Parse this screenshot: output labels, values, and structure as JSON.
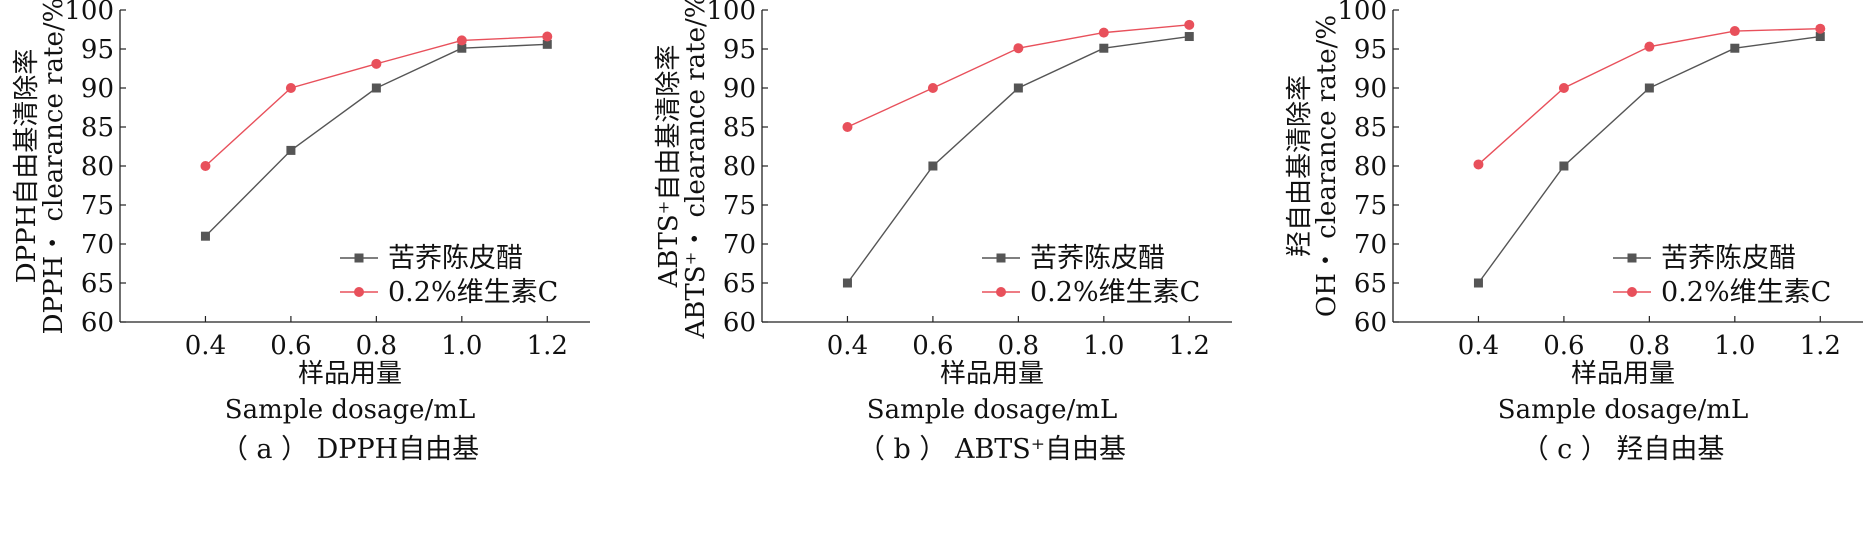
{
  "colors": {
    "series_1": "#555555",
    "series_2": "#e8505b",
    "axis": "#222222"
  },
  "legend": [
    "苦荞陈皮醋",
    "0.2%维生素C"
  ],
  "chart_data": [
    {
      "type": "line",
      "caption": "（ a ） DPPH自由基",
      "ylabel_cn": "DPPH自由基清除率",
      "ylabel_en": "DPPH・ clearance rate/%",
      "xlabel_cn": "样品用量",
      "xlabel_en": "Sample dosage/mL",
      "x": [
        0.4,
        0.6,
        0.8,
        1.0,
        1.2
      ],
      "xticks": [
        "0.4",
        "0.6",
        "0.8",
        "1.0",
        "1.2"
      ],
      "xlim": [
        0.2,
        1.3
      ],
      "ylim": [
        60,
        100
      ],
      "yticks": [
        "60",
        "65",
        "70",
        "75",
        "80",
        "85",
        "90",
        "95",
        "100"
      ],
      "series": [
        {
          "name": "苦荞陈皮醋",
          "marker": "square",
          "values": [
            71,
            82,
            90,
            95.1,
            95.6
          ]
        },
        {
          "name": "0.2%维生素C",
          "marker": "circle",
          "values": [
            80,
            90,
            93.1,
            96.1,
            96.6
          ]
        }
      ]
    },
    {
      "type": "line",
      "caption": "（ b ） ABTS⁺自由基",
      "ylabel_cn": "ABTS⁺自由基清除率",
      "ylabel_en": "ABTS⁺・ clearance rate/%",
      "xlabel_cn": "样品用量",
      "xlabel_en": "Sample dosage/mL",
      "x": [
        0.4,
        0.6,
        0.8,
        1.0,
        1.2
      ],
      "xticks": [
        "0.4",
        "0.6",
        "0.8",
        "1.0",
        "1.2"
      ],
      "xlim": [
        0.2,
        1.3
      ],
      "ylim": [
        60,
        100
      ],
      "yticks": [
        "60",
        "65",
        "70",
        "75",
        "80",
        "85",
        "90",
        "95",
        "100"
      ],
      "series": [
        {
          "name": "苦荞陈皮醋",
          "marker": "square",
          "values": [
            65,
            80,
            90,
            95.1,
            96.6
          ]
        },
        {
          "name": "0.2%维生素C",
          "marker": "circle",
          "values": [
            85,
            90,
            95.1,
            97.1,
            98.1
          ]
        }
      ]
    },
    {
      "type": "line",
      "caption": "（ c ） 羟自由基",
      "ylabel_cn": "羟自由基清除率",
      "ylabel_en": "OH・ clearance rate/%",
      "xlabel_cn": "样品用量",
      "xlabel_en": "Sample dosage/mL",
      "x": [
        0.4,
        0.6,
        0.8,
        1.0,
        1.2
      ],
      "xticks": [
        "0.4",
        "0.6",
        "0.8",
        "1.0",
        "1.2"
      ],
      "xlim": [
        0.2,
        1.3
      ],
      "ylim": [
        60,
        100
      ],
      "yticks": [
        "60",
        "65",
        "70",
        "75",
        "80",
        "85",
        "90",
        "95",
        "100"
      ],
      "series": [
        {
          "name": "苦荞陈皮醋",
          "marker": "square",
          "values": [
            65,
            80,
            90,
            95.1,
            96.6
          ]
        },
        {
          "name": "0.2%维生素C",
          "marker": "circle",
          "values": [
            80.2,
            90,
            95.3,
            97.3,
            97.6
          ]
        }
      ]
    }
  ]
}
